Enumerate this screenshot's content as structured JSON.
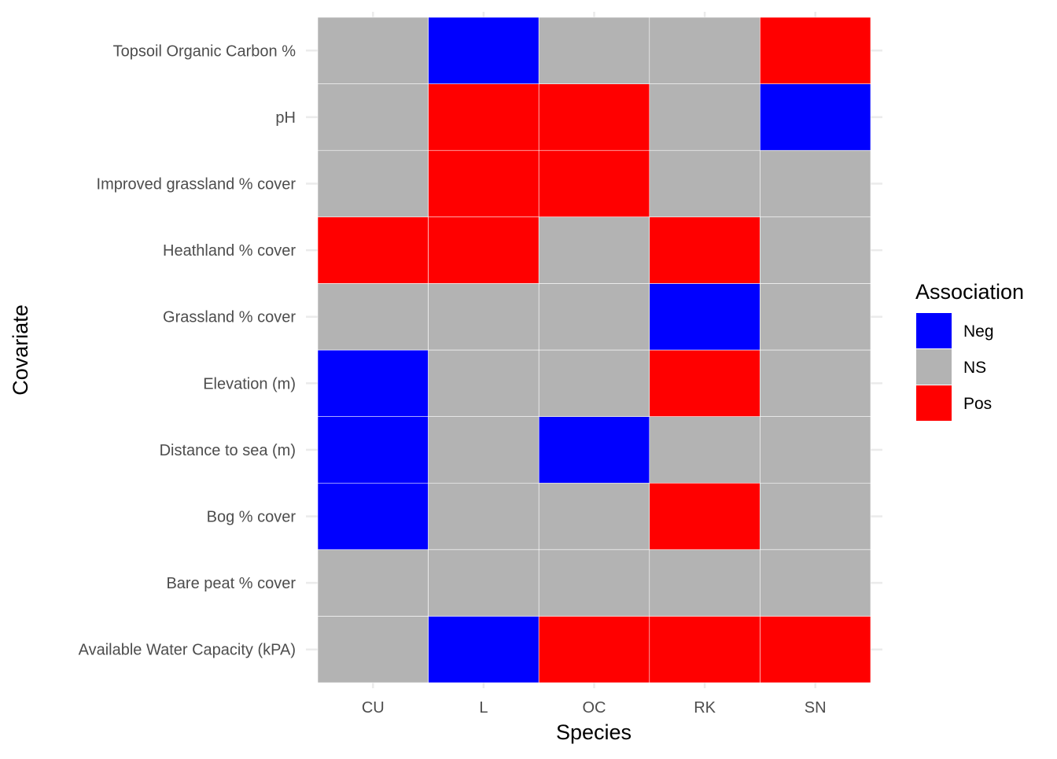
{
  "chart_data": {
    "type": "heatmap",
    "title": "",
    "xlabel": "Species",
    "ylabel": "Covariate",
    "x_categories": [
      "CU",
      "L",
      "OC",
      "RK",
      "SN"
    ],
    "y_categories": [
      "Available Water Capacity (kPA)",
      "Bare peat % cover",
      "Bog % cover",
      "Distance to sea (m)",
      "Elevation (m)",
      "Grassland % cover",
      "Heathland % cover",
      "Improved grassland % cover",
      "pH",
      "Topsoil Organic Carbon %"
    ],
    "values": [
      [
        "NS",
        "Neg",
        "Pos",
        "Pos",
        "Pos"
      ],
      [
        "NS",
        "NS",
        "NS",
        "NS",
        "NS"
      ],
      [
        "Neg",
        "NS",
        "NS",
        "Pos",
        "NS"
      ],
      [
        "Neg",
        "NS",
        "Neg",
        "NS",
        "NS"
      ],
      [
        "Neg",
        "NS",
        "NS",
        "Pos",
        "NS"
      ],
      [
        "NS",
        "NS",
        "NS",
        "Neg",
        "NS"
      ],
      [
        "Pos",
        "Pos",
        "NS",
        "Pos",
        "NS"
      ],
      [
        "NS",
        "Pos",
        "Pos",
        "NS",
        "NS"
      ],
      [
        "NS",
        "Pos",
        "Pos",
        "NS",
        "Neg"
      ],
      [
        "NS",
        "Neg",
        "NS",
        "NS",
        "Pos"
      ]
    ],
    "legend": {
      "title": "Association",
      "position": "right",
      "entries": [
        {
          "label": "Neg",
          "color": "#0000ff"
        },
        {
          "label": "NS",
          "color": "#b3b3b3"
        },
        {
          "label": "Pos",
          "color": "#ff0000"
        }
      ]
    },
    "grid": true
  }
}
